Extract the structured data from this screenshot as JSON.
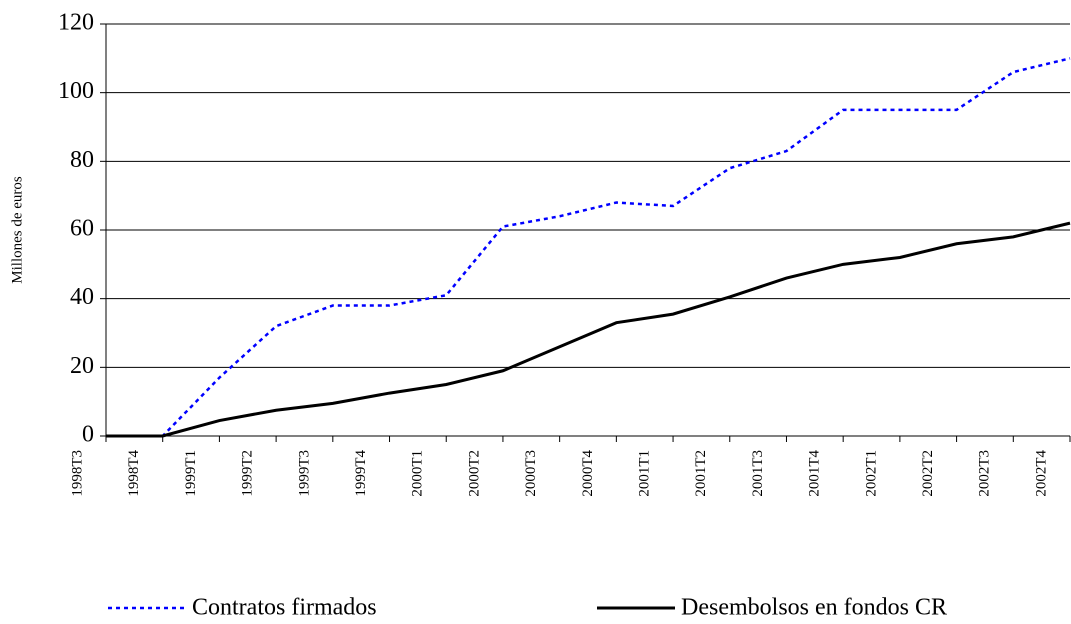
{
  "chart_data": {
    "type": "line",
    "ylabel": "Millones de euros",
    "categories": [
      "1998T3",
      "1998T4",
      "1999T1",
      "1999T2",
      "1999T3",
      "1999T4",
      "2000T1",
      "2000T2",
      "2000T3",
      "2000T4",
      "2001T1",
      "2001T2",
      "2001T3",
      "2001T4",
      "2002T1",
      "2002T2",
      "2002T3",
      "2002T4"
    ],
    "series": [
      {
        "name": "Contratos firmados",
        "color": "#0000ff",
        "dash": "dotted",
        "values": [
          0,
          0,
          17,
          32,
          38,
          38,
          41,
          61,
          64,
          68,
          67,
          78,
          83,
          95,
          95,
          95,
          106,
          110
        ]
      },
      {
        "name": "Desembolsos en fondos CR",
        "color": "#000000",
        "dash": "solid",
        "values": [
          0,
          0,
          4.5,
          7.5,
          9.5,
          12.5,
          15,
          19,
          26,
          33,
          35.5,
          40.5,
          46,
          50,
          52,
          56,
          58,
          62
        ]
      }
    ],
    "ylim": [
      0,
      120
    ],
    "yticks": [
      0,
      20,
      40,
      60,
      80,
      100,
      120
    ],
    "grid": true,
    "legend": "bottom"
  }
}
